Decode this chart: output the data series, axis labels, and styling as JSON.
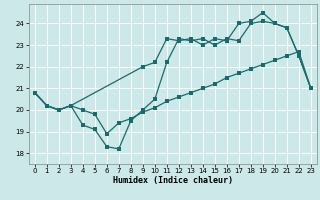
{
  "xlabel": "Humidex (Indice chaleur)",
  "background_color": "#cce8e8",
  "grid_color": "#ffffff",
  "line_color": "#1a6b6b",
  "xlim": [
    -0.5,
    23.5
  ],
  "ylim": [
    17.5,
    24.9
  ],
  "yticks": [
    18,
    19,
    20,
    21,
    22,
    23,
    24
  ],
  "xticks": [
    0,
    1,
    2,
    3,
    4,
    5,
    6,
    7,
    8,
    9,
    10,
    11,
    12,
    13,
    14,
    15,
    16,
    17,
    18,
    19,
    20,
    21,
    22,
    23
  ],
  "series1_x": [
    0,
    1,
    2,
    3,
    4,
    5,
    6,
    7,
    8,
    9,
    10,
    11,
    12,
    13,
    14,
    15,
    16,
    17,
    18,
    19,
    20,
    21,
    22,
    23
  ],
  "series1_y": [
    20.8,
    20.2,
    20.0,
    20.2,
    19.3,
    19.1,
    18.3,
    18.2,
    19.5,
    20.0,
    20.5,
    22.2,
    23.3,
    23.2,
    23.3,
    23.0,
    23.3,
    23.2,
    24.0,
    24.1,
    24.0,
    23.8,
    22.5,
    21.0
  ],
  "series2_x": [
    0,
    1,
    2,
    3,
    9,
    10,
    11,
    12,
    13,
    14,
    15,
    16,
    17,
    18,
    19,
    20,
    21,
    22,
    23
  ],
  "series2_y": [
    20.8,
    20.2,
    20.0,
    20.2,
    22.0,
    22.2,
    23.3,
    23.2,
    23.3,
    23.0,
    23.3,
    23.2,
    24.0,
    24.1,
    24.5,
    24.0,
    23.8,
    22.5,
    21.0
  ],
  "series3_x": [
    0,
    1,
    2,
    3,
    4,
    5,
    6,
    7,
    8,
    9,
    10,
    11,
    12,
    13,
    14,
    15,
    16,
    17,
    18,
    19,
    20,
    21,
    22,
    23
  ],
  "series3_y": [
    20.8,
    20.2,
    20.0,
    20.2,
    20.0,
    19.8,
    18.9,
    19.4,
    19.6,
    19.9,
    20.1,
    20.4,
    20.6,
    20.8,
    21.0,
    21.2,
    21.5,
    21.7,
    21.9,
    22.1,
    22.3,
    22.5,
    22.7,
    21.0
  ]
}
